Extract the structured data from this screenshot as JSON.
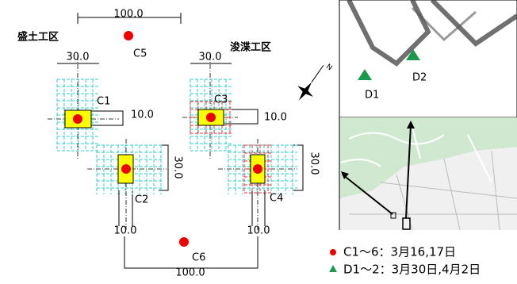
{
  "site_labels": {
    "left": "盛土工区",
    "right": "浚渫工区"
  },
  "dimensions": {
    "top": "100.0",
    "left_width": "30.0",
    "right_width": "30.0",
    "c1_offset": "10.0",
    "c3_offset": "10.0",
    "left_height": "30.0",
    "right_height": "30.0",
    "bottom_offset": "10.0",
    "bottom": "100.0"
  },
  "points": {
    "c1": "C1",
    "c2": "C2",
    "c3": "C3",
    "c4": "C4",
    "c5": "C5",
    "c6": "C6",
    "d1": "D1",
    "d2": "D2"
  },
  "legend": [
    "C1～6：3月16,17日",
    "D1～2：3月30日,4月2日"
  ]
}
